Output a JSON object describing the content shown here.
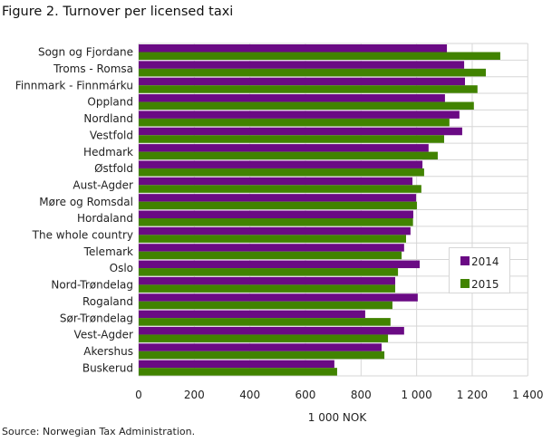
{
  "chart_data": {
    "type": "bar",
    "orientation": "horizontal",
    "title": "Figure 2. Turnover per licensed taxi",
    "xlabel": "1 000 NOK",
    "ylabel": "",
    "xlim": [
      0,
      1400
    ],
    "xticks": [
      0,
      200,
      400,
      600,
      800,
      1000,
      1200,
      1400
    ],
    "xtick_labels": [
      "0",
      "200",
      "400",
      "600",
      "800",
      "1 000",
      "1 200",
      "1 400"
    ],
    "grid": true,
    "legend_position": "right",
    "categories": [
      "Sogn og Fjordane",
      "Troms - Romsa",
      "Finnmark - Finnmárku",
      "Oppland",
      "Nordland",
      "Vestfold",
      "Hedmark",
      "Østfold",
      "Aust-Agder",
      "Møre og Romsdal",
      "Hordaland",
      "The whole country",
      "Telemark",
      "Oslo",
      "Nord-Trøndelag",
      "Rogaland",
      "Sør-Trøndelag",
      "Vest-Agder",
      "Akershus",
      "Buskerud"
    ],
    "series": [
      {
        "name": "2014",
        "color": "#6a0a84",
        "values": [
          1109,
          1171,
          1174,
          1102,
          1154,
          1164,
          1043,
          1021,
          985,
          998,
          988,
          978,
          955,
          1011,
          923,
          1004,
          815,
          955,
          874,
          704
        ]
      },
      {
        "name": "2015",
        "color": "#418300",
        "values": [
          1301,
          1249,
          1219,
          1206,
          1118,
          1099,
          1076,
          1027,
          1017,
          1001,
          987,
          962,
          946,
          933,
          923,
          913,
          906,
          897,
          884,
          714
        ]
      }
    ],
    "source": "Source: Norwegian Tax Administration."
  }
}
